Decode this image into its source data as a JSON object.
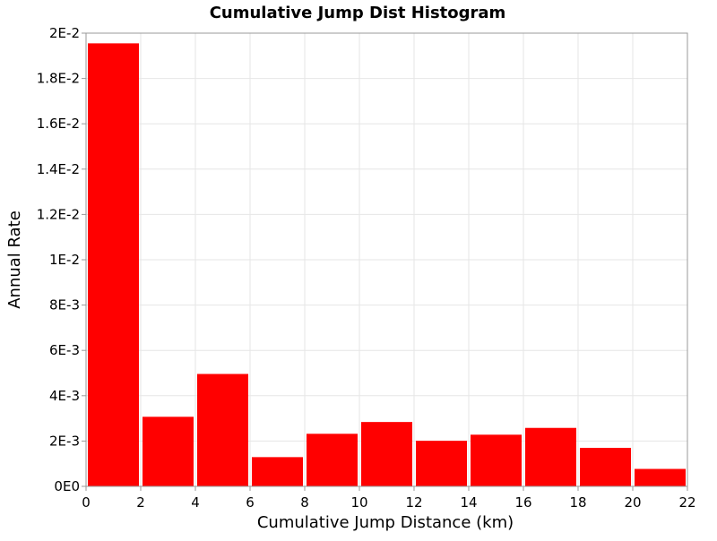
{
  "chart_data": {
    "type": "bar",
    "title": "Cumulative Jump Dist Histogram",
    "xlabel": "Cumulative Jump Distance (km)",
    "ylabel": "Annual Rate",
    "xlim": [
      0,
      22
    ],
    "ylim": [
      0,
      0.02
    ],
    "grid": true,
    "x_ticks": [
      0,
      2,
      4,
      6,
      8,
      10,
      12,
      14,
      16,
      18,
      20,
      22
    ],
    "y_ticks": [
      {
        "value": 0,
        "label": "0E0"
      },
      {
        "value": 0.002,
        "label": "2E-3"
      },
      {
        "value": 0.004,
        "label": "4E-3"
      },
      {
        "value": 0.006,
        "label": "6E-3"
      },
      {
        "value": 0.008,
        "label": "8E-3"
      },
      {
        "value": 0.01,
        "label": "1E-2"
      },
      {
        "value": 0.012,
        "label": "1.2E-2"
      },
      {
        "value": 0.014,
        "label": "1.4E-2"
      },
      {
        "value": 0.016,
        "label": "1.6E-2"
      },
      {
        "value": 0.018,
        "label": "1.8E-2"
      },
      {
        "value": 0.02,
        "label": "2E-2"
      }
    ],
    "bars": [
      {
        "x_start": 0,
        "x_end": 2,
        "value": 0.01955
      },
      {
        "x_start": 2,
        "x_end": 4,
        "value": 0.00307
      },
      {
        "x_start": 4,
        "x_end": 6,
        "value": 0.00496
      },
      {
        "x_start": 6,
        "x_end": 8,
        "value": 0.00129
      },
      {
        "x_start": 8,
        "x_end": 10,
        "value": 0.00232
      },
      {
        "x_start": 10,
        "x_end": 12,
        "value": 0.00284
      },
      {
        "x_start": 12,
        "x_end": 14,
        "value": 0.00201
      },
      {
        "x_start": 14,
        "x_end": 16,
        "value": 0.00228
      },
      {
        "x_start": 16,
        "x_end": 18,
        "value": 0.00258
      },
      {
        "x_start": 18,
        "x_end": 20,
        "value": 0.0017
      },
      {
        "x_start": 20,
        "x_end": 22,
        "value": 0.00077
      }
    ],
    "colors": {
      "bar": "#ff0000",
      "grid": "#e6e6e6",
      "axis": "#999999"
    }
  }
}
